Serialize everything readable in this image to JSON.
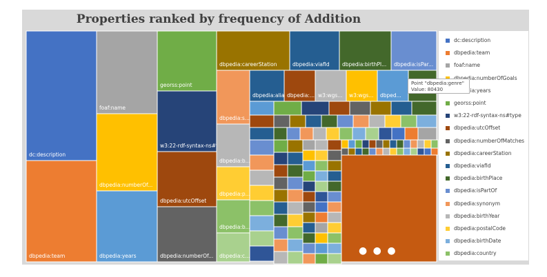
{
  "chart_data": {
    "type": "treemap",
    "title": "Properties ranked by frequency of Addition",
    "colors": [
      "#4472c4",
      "#ed7d31",
      "#a5a5a5",
      "#ffc000",
      "#5b9bd5",
      "#70ad47",
      "#264478",
      "#9e480e",
      "#636363",
      "#997300",
      "#255e91",
      "#43682b",
      "#698ed0",
      "#f1975a",
      "#b7b7b7",
      "#ffcd33",
      "#8cc168",
      "#7cafdd",
      "#a9d18e",
      "#2f5597"
    ],
    "legend": [
      {
        "label": "dc:description",
        "color": "#4472c4"
      },
      {
        "label": "dbpedia:team",
        "color": "#ed7d31"
      },
      {
        "label": "foaf:name",
        "color": "#a5a5a5"
      },
      {
        "label": "dbpedia:numberOfGoals",
        "color": "#ffc000"
      },
      {
        "label": "dbpedia:years",
        "color": "#5b9bd5"
      },
      {
        "label": "georss:point",
        "color": "#70ad47"
      },
      {
        "label": "w3:22-rdf-syntax-ns#type",
        "color": "#264478"
      },
      {
        "label": "dbpedia:utcOffset",
        "color": "#9e480e"
      },
      {
        "label": "dbpedia:numberOfMatches",
        "color": "#636363"
      },
      {
        "label": "dbpedia:careerStation",
        "color": "#997300"
      },
      {
        "label": "dbpedia:viafId",
        "color": "#255e91"
      },
      {
        "label": "dbpedia:birthPlace",
        "color": "#43682b"
      },
      {
        "label": "dbpedia:isPartOf",
        "color": "#698ed0"
      },
      {
        "label": "dbpedia:synonym",
        "color": "#f1975a"
      },
      {
        "label": "dbpedia:birthYear",
        "color": "#b7b7b7"
      },
      {
        "label": "dbpedia:postalCode",
        "color": "#ffcd33"
      },
      {
        "label": "dbpedia:birthDate",
        "color": "#7cafdd"
      },
      {
        "label": "dbpedia:country",
        "color": "#8cc168"
      }
    ],
    "labels": {
      "c1": [
        "dc:description",
        "dbpedia:team"
      ],
      "c2": [
        "foaf:name",
        "dbpedia:numberOf...",
        "dbpedia:years"
      ],
      "c3": [
        "georss:point",
        "w3:22-rdf-syntax-ns#type",
        "dbpedia:utcOffset",
        "dbpedia:numberOf..."
      ],
      "r1": [
        "dbpedia:careerStation",
        "dbpedia:viafId",
        "dbpedia:birthPl...",
        "dbpedia:isPar..."
      ],
      "c4": [
        "dbpedia:s...",
        "dbpedia:b...",
        "dbpedia:p...",
        "dbpedia:b...",
        "dbpedia:c..."
      ],
      "r2": [
        "dbpedia:alias",
        "dbpedia:...",
        "w3:wgs...",
        "w3:wgs...",
        "dbped..."
      ]
    },
    "tooltip": {
      "line1": "Point \"dbpedia:genre\"",
      "line2": "Value: 80430"
    }
  }
}
